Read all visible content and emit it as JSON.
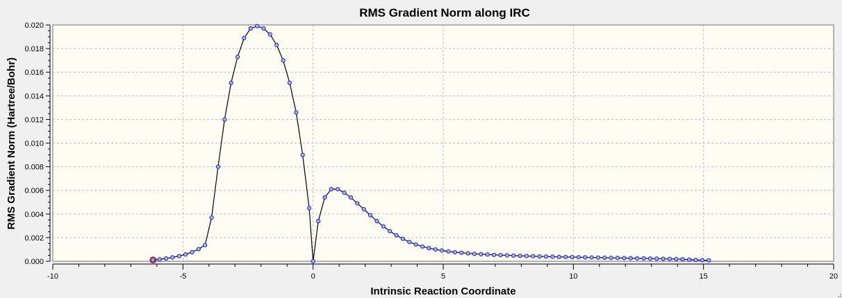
{
  "chart_data": {
    "type": "line",
    "title": "RMS Gradient Norm along IRC",
    "xlabel": "Intrinsic Reaction Coordinate",
    "ylabel": "RMS Gradient Norm (Hartree/Bohr)",
    "xlim": [
      -10,
      20
    ],
    "ylim": [
      0,
      0.02
    ],
    "x_ticks": [
      -10,
      -5,
      0,
      5,
      10,
      15,
      20
    ],
    "y_ticks": [
      "0.000",
      "0.002",
      "0.004",
      "0.006",
      "0.008",
      "0.010",
      "0.012",
      "0.014",
      "0.016",
      "0.018",
      "0.020"
    ],
    "grid": true,
    "colors": {
      "plot_background": "#fdfdf3",
      "line": "#000000",
      "marker_fill": "#aeb8ff",
      "marker_stroke": "#1a1adc",
      "highlight_marker": "#c00000",
      "grid": "#bcbcbc"
    },
    "highlight_point": {
      "x": -6.15,
      "y": 0.00011
    },
    "series": [
      {
        "points": [
          [
            -6.15,
            0.00011
          ],
          [
            -5.9,
            0.00016
          ],
          [
            -5.65,
            0.00024
          ],
          [
            -5.4,
            0.00033
          ],
          [
            -5.15,
            0.00044
          ],
          [
            -4.9,
            0.00058
          ],
          [
            -4.65,
            0.00077
          ],
          [
            -4.4,
            0.00103
          ],
          [
            -4.15,
            0.00137
          ],
          [
            -3.9,
            0.0037
          ],
          [
            -3.65,
            0.008
          ],
          [
            -3.4,
            0.012
          ],
          [
            -3.15,
            0.0151
          ],
          [
            -2.9,
            0.0173
          ],
          [
            -2.65,
            0.0189
          ],
          [
            -2.4,
            0.0197
          ],
          [
            -2.15,
            0.0199
          ],
          [
            -1.9,
            0.0197
          ],
          [
            -1.65,
            0.0192
          ],
          [
            -1.4,
            0.0183
          ],
          [
            -1.15,
            0.017
          ],
          [
            -0.9,
            0.0151
          ],
          [
            -0.65,
            0.0126
          ],
          [
            -0.4,
            0.009
          ],
          [
            -0.15,
            0.0045
          ],
          [
            0.0,
            0.0
          ],
          [
            0.2,
            0.0034
          ],
          [
            0.45,
            0.0054
          ],
          [
            0.7,
            0.0061
          ],
          [
            0.95,
            0.0061
          ],
          [
            1.2,
            0.0058
          ],
          [
            1.45,
            0.0054
          ],
          [
            1.7,
            0.0049
          ],
          [
            1.95,
            0.0044
          ],
          [
            2.2,
            0.0039
          ],
          [
            2.45,
            0.0034
          ],
          [
            2.7,
            0.00295
          ],
          [
            2.95,
            0.00255
          ],
          [
            3.2,
            0.0022
          ],
          [
            3.45,
            0.0019
          ],
          [
            3.7,
            0.00163
          ],
          [
            3.95,
            0.00142
          ],
          [
            4.2,
            0.00125
          ],
          [
            4.45,
            0.00111
          ],
          [
            4.7,
            0.001
          ],
          [
            4.95,
            0.00091
          ],
          [
            5.2,
            0.00083
          ],
          [
            5.45,
            0.00077
          ],
          [
            5.7,
            0.00072
          ],
          [
            5.95,
            0.00067
          ],
          [
            6.2,
            0.00063
          ],
          [
            6.45,
            0.0006
          ],
          [
            6.7,
            0.00057
          ],
          [
            6.95,
            0.00054
          ],
          [
            7.2,
            0.00052
          ],
          [
            7.45,
            0.0005
          ],
          [
            7.7,
            0.00048
          ],
          [
            7.95,
            0.00046
          ],
          [
            8.2,
            0.00044
          ],
          [
            8.45,
            0.00043
          ],
          [
            8.7,
            0.00041
          ],
          [
            8.95,
            0.0004
          ],
          [
            9.2,
            0.00039
          ],
          [
            9.45,
            0.00037
          ],
          [
            9.7,
            0.00036
          ],
          [
            9.95,
            0.00035
          ],
          [
            10.2,
            0.00034
          ],
          [
            10.45,
            0.00033
          ],
          [
            10.7,
            0.00032
          ],
          [
            10.95,
            0.00031
          ],
          [
            11.2,
            0.0003
          ],
          [
            11.45,
            0.00029
          ],
          [
            11.7,
            0.00028
          ],
          [
            11.95,
            0.00027
          ],
          [
            12.2,
            0.00026
          ],
          [
            12.45,
            0.00025
          ],
          [
            12.7,
            0.00024
          ],
          [
            12.95,
            0.00023
          ],
          [
            13.2,
            0.00022
          ],
          [
            13.45,
            0.00021
          ],
          [
            13.7,
            0.0002
          ],
          [
            13.95,
            0.00019
          ],
          [
            14.2,
            0.00017
          ],
          [
            14.45,
            0.00014
          ],
          [
            14.7,
            0.00011
          ],
          [
            14.95,
            9e-05
          ],
          [
            15.2,
            8e-05
          ]
        ]
      }
    ]
  }
}
